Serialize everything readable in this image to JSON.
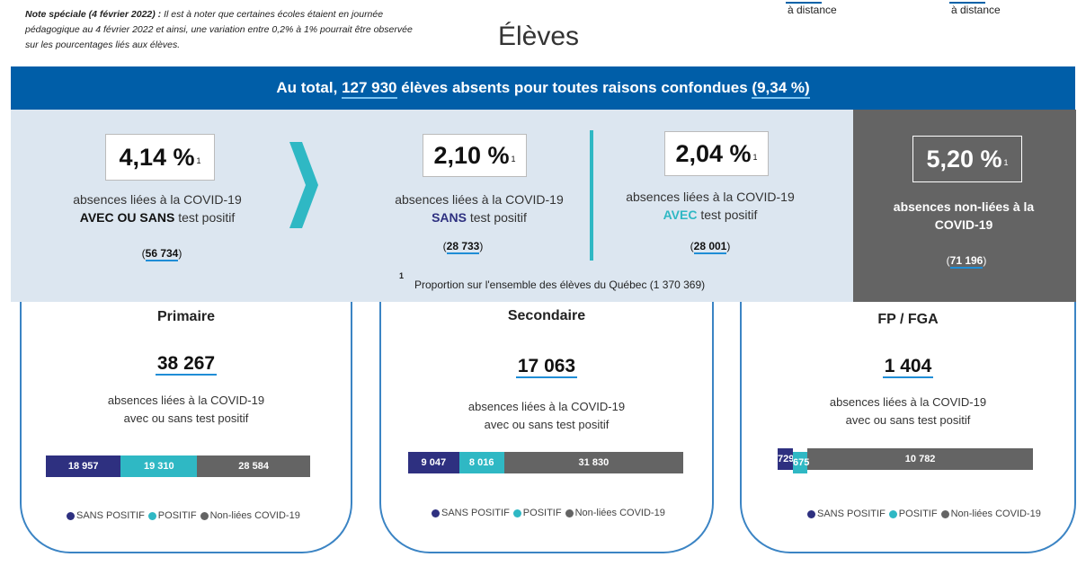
{
  "note": {
    "lead": "Note spéciale (4 février 2022) :",
    "text": " Il est à noter que certaines écoles étaient en journée pédagogique au 4 février 2022 et ainsi, une variation entre 0,2% à 1% pourrait être observée sur les pourcentages liés aux élèves."
  },
  "top_tabs": [
    "à distance",
    "à distance"
  ],
  "title": "Élèves",
  "banner": {
    "prefix": "Au total, ",
    "total": "127 930",
    "middle": " élèves absents pour toutes raisons confondues ",
    "pct": "(9,34 %)"
  },
  "kpis": {
    "all": {
      "pct": "4,14 %",
      "sup": "1",
      "line1": "absences liées à la COVID-19",
      "emph": "AVEC OU SANS",
      "rest": " test positif",
      "count": "56 734"
    },
    "sans": {
      "pct": "2,10 %",
      "sup": "1",
      "line1": "absences liées à la COVID-19",
      "emph": "SANS",
      "rest": " test positif",
      "count": "28 733"
    },
    "avec": {
      "pct": "2,04 %",
      "sup": "1",
      "line1": "absences liées à la COVID-19",
      "emph": "AVEC",
      "rest": " test positif",
      "count": "28 001"
    },
    "non": {
      "pct": "5,20 %",
      "sup": "1",
      "label": "absences non-liées à la COVID-19",
      "count": "71 196"
    }
  },
  "footnote": {
    "mark": "1",
    "text": "Proportion sur l'ensemble des élèves du Québec (1 370 369)"
  },
  "colors": {
    "sans": "#2e3080",
    "positif": "#2fb8c4",
    "non": "#646464",
    "banner": "#005ea8"
  },
  "legend": [
    "SANS POSITIF",
    "POSITIF",
    "Non-liées COVID-19"
  ],
  "levels": [
    {
      "name": "Primaire",
      "total": "38 267",
      "line1": "absences liées à la COVID-19",
      "line2": "avec ou sans test positif",
      "bar": [
        {
          "label": "18 957",
          "value": 18957
        },
        {
          "label": "19 310",
          "value": 19310
        },
        {
          "label": "28 584",
          "value": 28584
        }
      ]
    },
    {
      "name": "Secondaire",
      "total": "17 063",
      "line1": "absences liées à la COVID-19",
      "line2": "avec ou sans test positif",
      "bar": [
        {
          "label": "9 047",
          "value": 9047
        },
        {
          "label": "8 016",
          "value": 8016
        },
        {
          "label": "31 830",
          "value": 31830
        }
      ]
    },
    {
      "name": "FP / FGA",
      "total": "1 404",
      "line1": "absences liées à la COVID-19",
      "line2": "avec ou sans test positif",
      "bar": [
        {
          "label": "729",
          "value": 729
        },
        {
          "label": "675",
          "value": 675
        },
        {
          "label": "10 782",
          "value": 10782
        }
      ]
    }
  ]
}
